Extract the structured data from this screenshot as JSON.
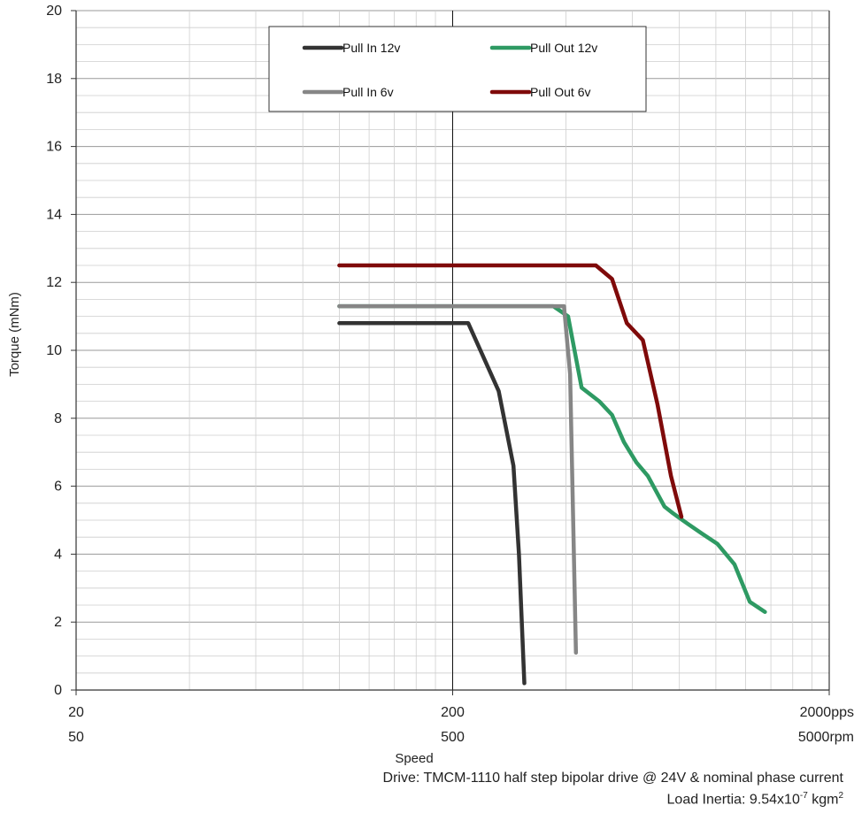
{
  "chart_data": {
    "type": "line",
    "ylabel": "Torque (mNm)",
    "xlabel": "Speed",
    "x_scale": "log",
    "xlim": [
      20,
      2000
    ],
    "ylim": [
      0,
      20
    ],
    "x_unit": "pps",
    "x_ticks": [
      {
        "value": 20,
        "label_pps": "20",
        "label_rpm": "50"
      },
      {
        "value": 200,
        "label_pps": "200",
        "label_rpm": "500"
      },
      {
        "value": 2000,
        "label_pps": "2000pps",
        "label_rpm": "5000rpm"
      }
    ],
    "y_ticks": [
      0,
      2,
      4,
      6,
      8,
      10,
      12,
      14,
      16,
      18,
      20
    ],
    "grid": true,
    "legend": {
      "placement": "top-center"
    },
    "series": [
      {
        "name": "Pull In 12v",
        "color": "#333333",
        "points": [
          [
            100,
            10.8
          ],
          [
            220,
            10.8
          ],
          [
            265,
            8.8
          ],
          [
            290,
            6.6
          ],
          [
            300,
            4.0
          ],
          [
            310,
            0.2
          ]
        ]
      },
      {
        "name": "Pull Out 12v",
        "color": "#2e9a63",
        "points": [
          [
            100,
            11.3
          ],
          [
            370,
            11.3
          ],
          [
            405,
            11.0
          ],
          [
            440,
            8.9
          ],
          [
            490,
            8.5
          ],
          [
            530,
            8.1
          ],
          [
            570,
            7.3
          ],
          [
            615,
            6.7
          ],
          [
            660,
            6.3
          ],
          [
            730,
            5.4
          ],
          [
            770,
            5.2
          ],
          [
            840,
            4.9
          ],
          [
            920,
            4.6
          ],
          [
            1010,
            4.3
          ],
          [
            1120,
            3.7
          ],
          [
            1230,
            2.6
          ],
          [
            1350,
            2.3
          ]
        ]
      },
      {
        "name": "Pull In 6v",
        "color": "#868686",
        "points": [
          [
            100,
            11.3
          ],
          [
            385,
            11.3
          ],
          [
            395,
            11.3
          ],
          [
            410,
            9.3
          ],
          [
            425,
            1.1
          ]
        ]
      },
      {
        "name": "Pull Out 6v",
        "color": "#7f0a0a",
        "points": [
          [
            100,
            12.5
          ],
          [
            480,
            12.5
          ],
          [
            530,
            12.1
          ],
          [
            580,
            10.8
          ],
          [
            640,
            10.3
          ],
          [
            700,
            8.4
          ],
          [
            760,
            6.3
          ],
          [
            810,
            5.1
          ]
        ]
      }
    ]
  },
  "notes": {
    "drive": "Drive: TMCM-1110 half step bipolar drive @ 24V & nominal phase current",
    "inertia_prefix": "Load Inertia: 9.54x10",
    "inertia_exp": "-7",
    "inertia_unit": " kgm",
    "inertia_unit_exp": "2"
  }
}
